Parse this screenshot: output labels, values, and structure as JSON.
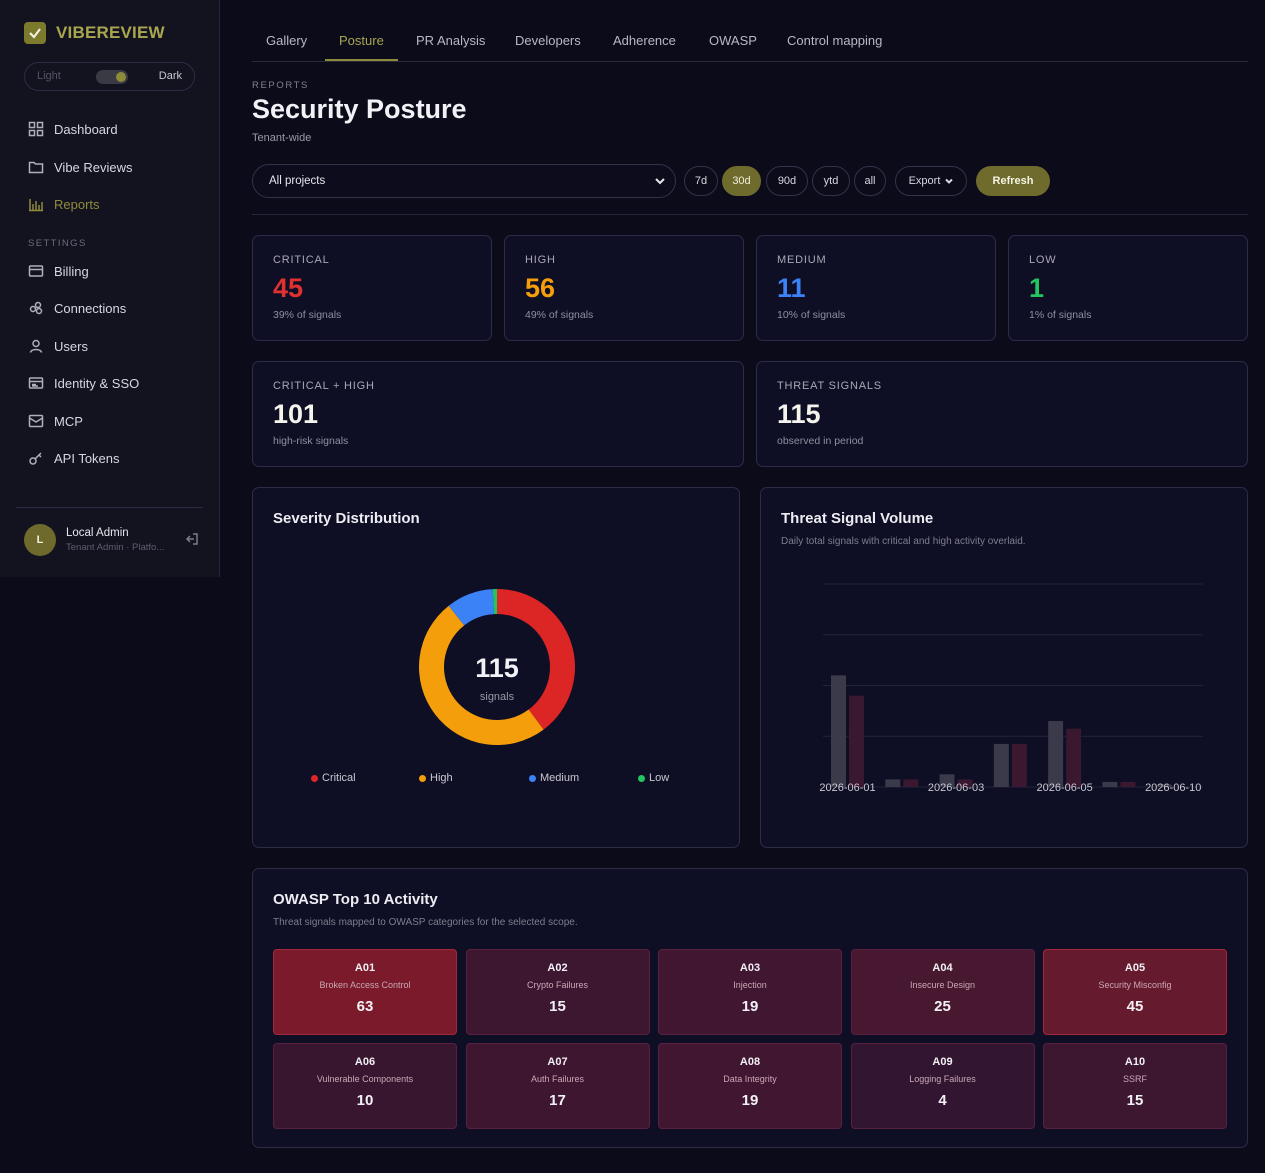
{
  "brand": {
    "name": "VIBEREVIEW"
  },
  "theme": {
    "light_label": "Light",
    "dark_label": "Dark",
    "selected": "Dark"
  },
  "nav": {
    "items": [
      {
        "label": "Dashboard",
        "icon": "grid-icon"
      },
      {
        "label": "Vibe Reviews",
        "icon": "folder-icon"
      },
      {
        "label": "Reports",
        "icon": "bar-chart-icon",
        "active": true
      }
    ],
    "settings_label": "SETTINGS",
    "settings_items": [
      {
        "label": "Billing",
        "icon": "credit-card-icon"
      },
      {
        "label": "Connections",
        "icon": "connections-icon"
      },
      {
        "label": "Users",
        "icon": "user-icon"
      },
      {
        "label": "Identity & SSO",
        "icon": "id-card-icon"
      },
      {
        "label": "MCP",
        "icon": "inbox-icon"
      },
      {
        "label": "API Tokens",
        "icon": "key-icon"
      }
    ]
  },
  "user": {
    "initial": "L",
    "name": "Local Admin",
    "role": "Tenant Admin · Platfo..."
  },
  "tabs": [
    "Gallery",
    "Posture",
    "PR Analysis",
    "Developers",
    "Adherence",
    "OWASP",
    "Control mapping"
  ],
  "active_tab": "Posture",
  "header": {
    "eyebrow": "REPORTS",
    "title": "Security Posture",
    "subtitle": "Tenant-wide"
  },
  "filters": {
    "project": "All projects",
    "ranges": [
      "7d",
      "30d",
      "90d",
      "ytd",
      "all"
    ],
    "selected_range": "30d",
    "export_label": "Export",
    "refresh_label": "Refresh"
  },
  "stats": [
    {
      "label": "CRITICAL",
      "value": "45",
      "sub": "39% of signals",
      "color": "#e03030"
    },
    {
      "label": "HIGH",
      "value": "56",
      "sub": "49% of signals",
      "color": "#f59e0b"
    },
    {
      "label": "MEDIUM",
      "value": "11",
      "sub": "10% of signals",
      "color": "#3b82f6"
    },
    {
      "label": "LOW",
      "value": "1",
      "sub": "1% of signals",
      "color": "#22c55e"
    }
  ],
  "summary": [
    {
      "label": "CRITICAL + HIGH",
      "value": "101",
      "sub": "high-risk signals"
    },
    {
      "label": "THREAT SIGNALS",
      "value": "115",
      "sub": "observed in period"
    }
  ],
  "severity": {
    "title": "Severity Distribution",
    "center_value": "115",
    "center_label": "signals"
  },
  "volume": {
    "title": "Threat Signal Volume",
    "subtitle": "Daily total signals with critical and high activity overlaid."
  },
  "chart_data": [
    {
      "type": "pie",
      "title": "Severity Distribution",
      "categories": [
        "Critical",
        "High",
        "Medium",
        "Low"
      ],
      "values": [
        45,
        56,
        11,
        1
      ],
      "colors": [
        "#dc2626",
        "#f59e0b",
        "#3b82f6",
        "#22c55e"
      ],
      "legend": "bottom"
    },
    {
      "type": "bar",
      "title": "Threat Signal Volume",
      "x": [
        "2026-06-01",
        "2026-06-02",
        "2026-06-03",
        "2026-06-04",
        "2026-06-05",
        "2026-06-06",
        "2026-06-10"
      ],
      "tick_labels": [
        "2026-06-01",
        "2026-06-03",
        "2026-06-05",
        "2026-06-10"
      ],
      "series": [
        {
          "values": [
            44,
            3,
            5,
            17,
            26,
            2,
            1
          ],
          "color": "#3a3a4a"
        },
        {
          "values": [
            36,
            3,
            3,
            17,
            23,
            2,
            0
          ],
          "color": "#3a1830"
        }
      ],
      "ylim": [
        0,
        80
      ],
      "grid": true
    }
  ],
  "owasp": {
    "title": "OWASP Top 10 Activity",
    "subtitle": "Threat signals mapped to OWASP categories for the selected scope.",
    "items": [
      {
        "code": "A01",
        "name": "Broken Access Control",
        "count": "63",
        "color": "#7b1a2a"
      },
      {
        "code": "A02",
        "name": "Crypto Failures",
        "count": "15",
        "color": "#3d1630"
      },
      {
        "code": "A03",
        "name": "Injection",
        "count": "19",
        "color": "#411630"
      },
      {
        "code": "A04",
        "name": "Insecure Design",
        "count": "25",
        "color": "#481830"
      },
      {
        "code": "A05",
        "name": "Security Misconfig",
        "count": "45",
        "color": "#661a2e"
      },
      {
        "code": "A06",
        "name": "Vulnerable Components",
        "count": "10",
        "color": "#391630"
      },
      {
        "code": "A07",
        "name": "Auth Failures",
        "count": "17",
        "color": "#3f1630"
      },
      {
        "code": "A08",
        "name": "Data Integrity",
        "count": "19",
        "color": "#411630"
      },
      {
        "code": "A09",
        "name": "Logging Failures",
        "count": "4",
        "color": "#321530"
      },
      {
        "code": "A10",
        "name": "SSRF",
        "count": "15",
        "color": "#3d1630"
      }
    ]
  }
}
